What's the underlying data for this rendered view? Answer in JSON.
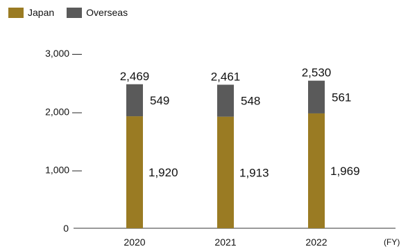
{
  "chart_data": {
    "type": "bar",
    "stacked": true,
    "categories": [
      "2020",
      "2021",
      "2022"
    ],
    "series": [
      {
        "name": "Japan",
        "values": [
          1920,
          1913,
          1969
        ],
        "color": "#9a7b23"
      },
      {
        "name": "Overseas",
        "values": [
          549,
          548,
          561
        ],
        "color": "#5a5a5a"
      }
    ],
    "totals": [
      2469,
      2461,
      2530
    ],
    "total_labels": [
      "2,469",
      "2,461",
      "2,530"
    ],
    "value_labels": {
      "Japan": [
        "1,920",
        "1,913",
        "1,969"
      ],
      "Overseas": [
        "549",
        "548",
        "561"
      ]
    },
    "yticks": [
      {
        "value": 0,
        "label": "0"
      },
      {
        "value": 1000,
        "label": "1,000 —"
      },
      {
        "value": 2000,
        "label": "2,000 —"
      },
      {
        "value": 3000,
        "label": "3,000 —"
      }
    ],
    "ylim": [
      0,
      3000
    ],
    "x_unit": "(FY)",
    "legend_position": "top-left",
    "grid": false
  }
}
